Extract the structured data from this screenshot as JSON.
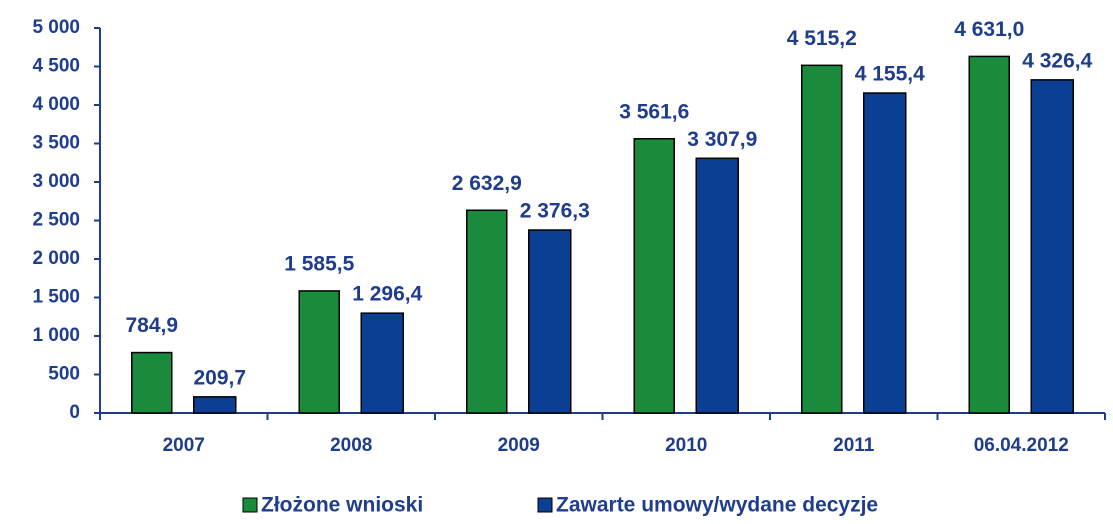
{
  "chart_data": {
    "type": "bar",
    "categories": [
      "2007",
      "2008",
      "2009",
      "2010",
      "2011",
      "06.04.2012"
    ],
    "series": [
      {
        "name": "Złożone wnioski",
        "color": "#1a8a3c",
        "values": [
          784.9,
          1585.5,
          2632.9,
          3561.6,
          4515.2,
          4631.0
        ],
        "value_labels": [
          "784,9",
          "1 585,5",
          "2 632,9",
          "3 561,6",
          "4 515,2",
          "4 631,0"
        ]
      },
      {
        "name": "Zawarte umowy/wydane decyzje",
        "color": "#0b3f93",
        "values": [
          209.7,
          1296.4,
          2376.3,
          3307.9,
          4155.4,
          4326.4
        ],
        "value_labels": [
          "209,7",
          "1 296,4",
          "2 376,3",
          "3 307,9",
          "4 155,4",
          "4 326,4"
        ]
      }
    ],
    "ylim": [
      0,
      5000
    ],
    "yticks": [
      0,
      500,
      {
        "value": 1000,
        "label": "1 000"
      },
      {
        "value": 1500,
        "label": "1 500"
      },
      {
        "value": 2000,
        "label": "2 000"
      },
      {
        "value": 2500,
        "label": "2 500"
      },
      {
        "value": 3000,
        "label": "3 000"
      },
      {
        "value": 3500,
        "label": "3 500"
      },
      {
        "value": 4000,
        "label": "4 000"
      },
      {
        "value": 4500,
        "label": "4 500"
      },
      {
        "value": 5000,
        "label": "5 000"
      }
    ],
    "legend": "bottom"
  }
}
